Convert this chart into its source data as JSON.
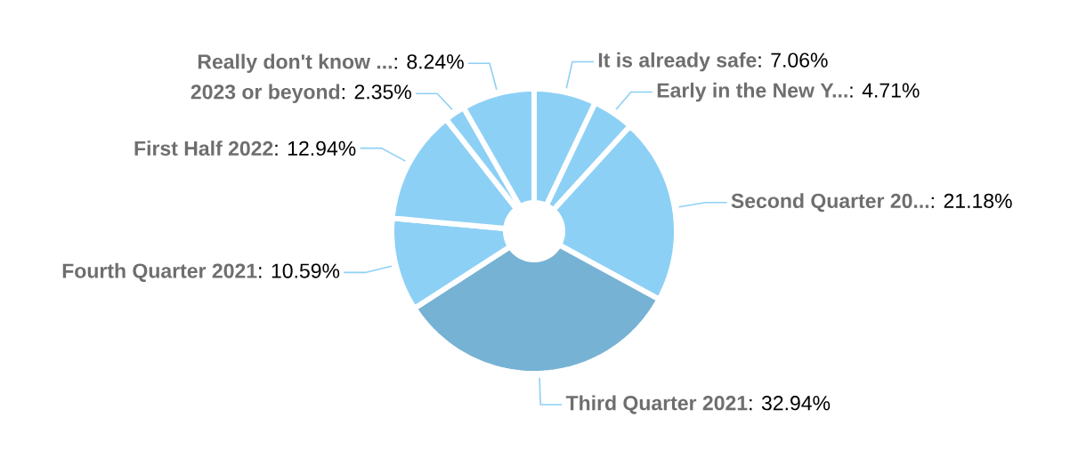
{
  "chart_data": {
    "type": "donut",
    "categories": [
      "It is already safe",
      "Early in the New Y...",
      "Second Quarter 20...",
      "Third Quarter 2021",
      "Fourth Quarter 2021",
      "First Half 2022",
      "2023 or beyond",
      "Really don't know ..."
    ],
    "values": [
      7.06,
      4.71,
      21.18,
      32.94,
      10.59,
      12.94,
      2.35,
      8.24
    ],
    "value_labels": [
      ": 7.06%",
      ": 4.71%",
      ": 21.18%",
      ": 32.94%",
      ": 10.59%",
      ": 12.94%",
      ": 2.35%",
      ": 8.24%"
    ],
    "colors": [
      "#8dd0f5",
      "#8dd0f5",
      "#8dd0f5",
      "#76b2d4",
      "#8dd0f5",
      "#8dd0f5",
      "#8dd0f5",
      "#8dd0f5"
    ]
  }
}
